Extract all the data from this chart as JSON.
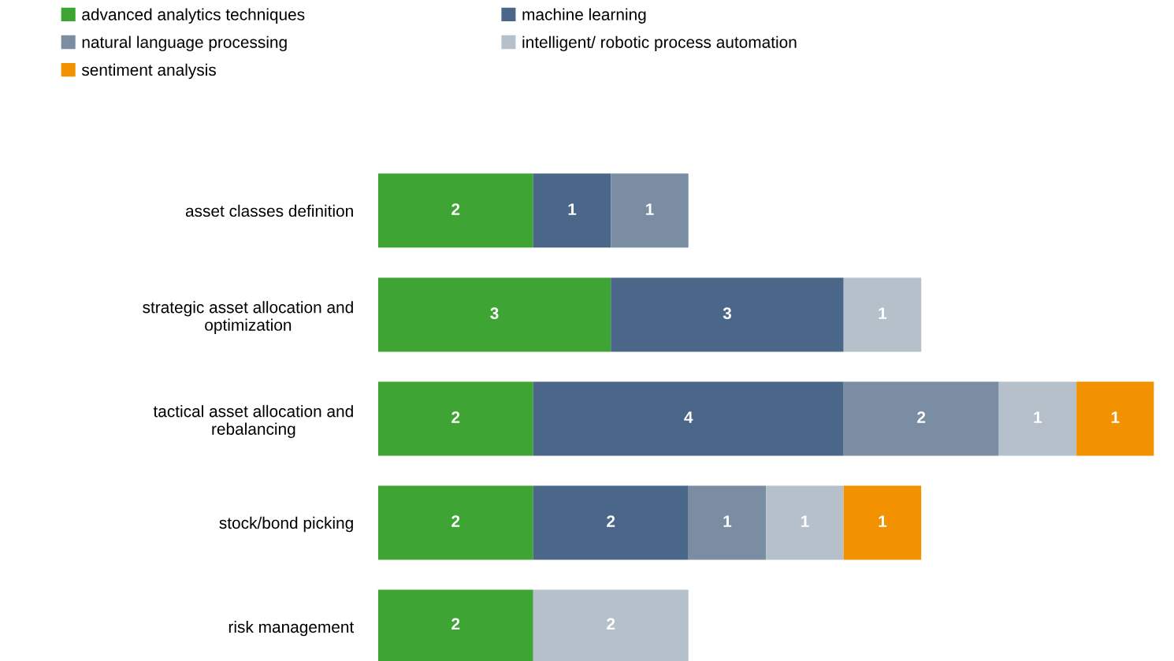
{
  "chart_data": {
    "type": "bar",
    "orientation": "horizontal",
    "stacked": true,
    "data_labels": true,
    "legend": "top",
    "grid": false,
    "tick_labels": "y",
    "xlim": [
      0,
      10
    ],
    "categories": [
      "asset classes definition",
      "strategic asset allocation and\noptimization",
      "tactical asset allocation and\nrebalancing",
      "stock/bond picking",
      "risk management"
    ],
    "series": [
      {
        "name": "advanced analytics techniques",
        "color": "#3ea535",
        "values": [
          2,
          3,
          2,
          2,
          2
        ]
      },
      {
        "name": "machine learning",
        "color": "#4a6789",
        "values": [
          1,
          3,
          4,
          2,
          null
        ]
      },
      {
        "name": "natural language processing",
        "color": "#7b8da3",
        "values": [
          1,
          null,
          2,
          1,
          null
        ]
      },
      {
        "name": "intelligent/ robotic process automation",
        "color": "#b6c0cb",
        "values": [
          null,
          1,
          1,
          1,
          2
        ]
      },
      {
        "name": "sentiment analysis",
        "color": "#f39200",
        "values": [
          null,
          null,
          1,
          1,
          null
        ]
      }
    ]
  }
}
